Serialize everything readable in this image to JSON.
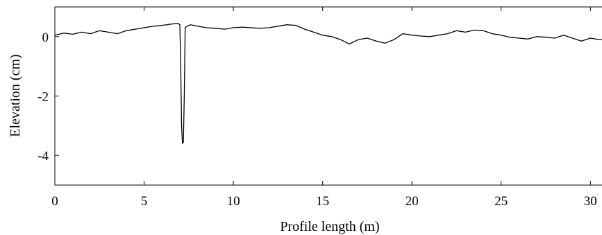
{
  "chart_data": {
    "type": "line",
    "title": "",
    "xlabel": "Profile length (m)",
    "ylabel": "Elevation (cm)",
    "xlim": [
      0,
      31
    ],
    "ylim": [
      -5,
      1
    ],
    "xticks": [
      0,
      5,
      10,
      15,
      20,
      25,
      30
    ],
    "yticks": [
      -4,
      -2,
      0
    ],
    "grid": false,
    "legend": "none",
    "line_color": "#000000",
    "series": [
      {
        "x": [
          0,
          0.5,
          1,
          1.5,
          2,
          2.5,
          3,
          3.5,
          4,
          4.5,
          5,
          5.5,
          6,
          6.5,
          6.9,
          7.0,
          7.05,
          7.1,
          7.15,
          7.2,
          7.25,
          7.3,
          7.4,
          7.6,
          8,
          8.5,
          9,
          9.5,
          10,
          10.5,
          11,
          11.5,
          12,
          12.5,
          13,
          13.5,
          14,
          14.5,
          15,
          15.5,
          16,
          16.5,
          17,
          17.5,
          18,
          18.5,
          19,
          19.5,
          20,
          20.5,
          21,
          21.5,
          22,
          22.5,
          23,
          23.5,
          24,
          24.5,
          25,
          25.5,
          26,
          26.5,
          27,
          27.5,
          28,
          28.5,
          29,
          29.5,
          30,
          30.5,
          31
        ],
        "y": [
          0.05,
          0.12,
          0.08,
          0.15,
          0.1,
          0.2,
          0.15,
          0.1,
          0.2,
          0.25,
          0.3,
          0.35,
          0.38,
          0.42,
          0.45,
          0.4,
          -1.0,
          -3.0,
          -3.6,
          -3.55,
          -2.0,
          0.3,
          0.35,
          0.4,
          0.35,
          0.3,
          0.28,
          0.25,
          0.3,
          0.32,
          0.3,
          0.28,
          0.3,
          0.35,
          0.4,
          0.38,
          0.25,
          0.15,
          0.05,
          0.0,
          -0.1,
          -0.25,
          -0.1,
          -0.05,
          -0.15,
          -0.22,
          -0.1,
          0.1,
          0.05,
          0.02,
          0.0,
          0.05,
          0.1,
          0.2,
          0.15,
          0.22,
          0.2,
          0.1,
          0.05,
          -0.02,
          -0.05,
          -0.08,
          0.0,
          -0.02,
          -0.05,
          0.05,
          -0.05,
          -0.15,
          -0.05,
          -0.1,
          -0.1
        ]
      }
    ]
  }
}
